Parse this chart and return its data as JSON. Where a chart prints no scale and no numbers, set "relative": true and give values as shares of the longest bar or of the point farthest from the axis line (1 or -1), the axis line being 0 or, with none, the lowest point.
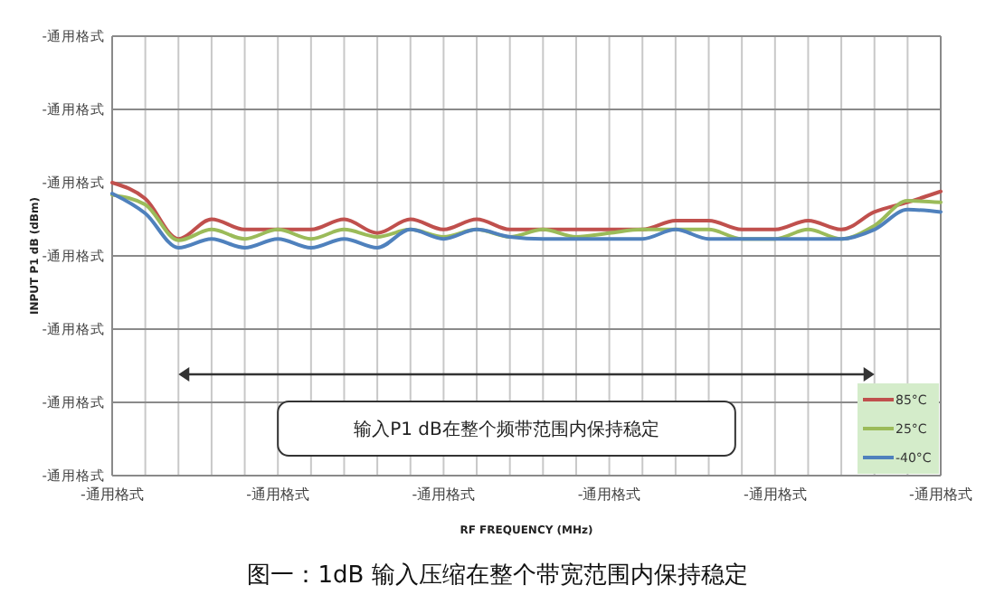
{
  "chart_data": {
    "type": "line",
    "title": "图一：1dB 输入压缩在整个带宽范围内保持稳定",
    "xlabel": "RF FREQUENCY (MHz)",
    "ylabel": "INPUT P1 dB (dBm)",
    "annotations": [
      "-通用格式",
      "-通用格式",
      "-通用格式",
      "-通用格式",
      "-通用格式",
      "-通用格式",
      "-通用格式",
      "输入P1 dB在整个频带范围内保持稳定"
    ],
    "relative": true,
    "categories": [
      "-通用格式",
      null,
      null,
      null,
      null,
      "-通用格式",
      null,
      null,
      null,
      null,
      "-通用格式",
      null,
      null,
      null,
      null,
      "-通用格式",
      null,
      null,
      null,
      null,
      "-通用格式",
      null,
      null,
      null,
      null,
      "-通用格式"
    ],
    "series": [
      {
        "name": "85°C",
        "color": "#c0504d",
        "values": [
          1,
          0.945,
          0.808,
          0.875,
          0.84,
          0.84,
          0.84,
          0.875,
          0.828,
          0.875,
          0.84,
          0.875,
          0.84,
          0.84,
          0.84,
          0.84,
          0.84,
          0.87,
          0.87,
          0.84,
          0.84,
          0.87,
          0.84,
          0.9,
          0.933,
          0.97
        ]
      },
      {
        "name": "25°C",
        "color": "#9bbb59",
        "values": [
          0.958,
          0.925,
          0.803,
          0.84,
          0.808,
          0.84,
          0.808,
          0.84,
          0.815,
          0.84,
          0.815,
          0.84,
          0.815,
          0.84,
          0.815,
          0.828,
          0.84,
          0.84,
          0.84,
          0.808,
          0.808,
          0.84,
          0.808,
          0.853,
          0.938,
          0.933
        ]
      },
      {
        "name": "-40°C",
        "color": "#4f81bd",
        "values": [
          0.963,
          0.895,
          0.778,
          0.808,
          0.778,
          0.808,
          0.778,
          0.808,
          0.778,
          0.84,
          0.808,
          0.84,
          0.815,
          0.808,
          0.808,
          0.808,
          0.808,
          0.84,
          0.808,
          0.808,
          0.808,
          0.808,
          0.808,
          0.84,
          0.908,
          0.9
        ]
      }
    ],
    "grid": true,
    "legend": "bottom right",
    "marker": "none",
    "line_style": "solid"
  }
}
